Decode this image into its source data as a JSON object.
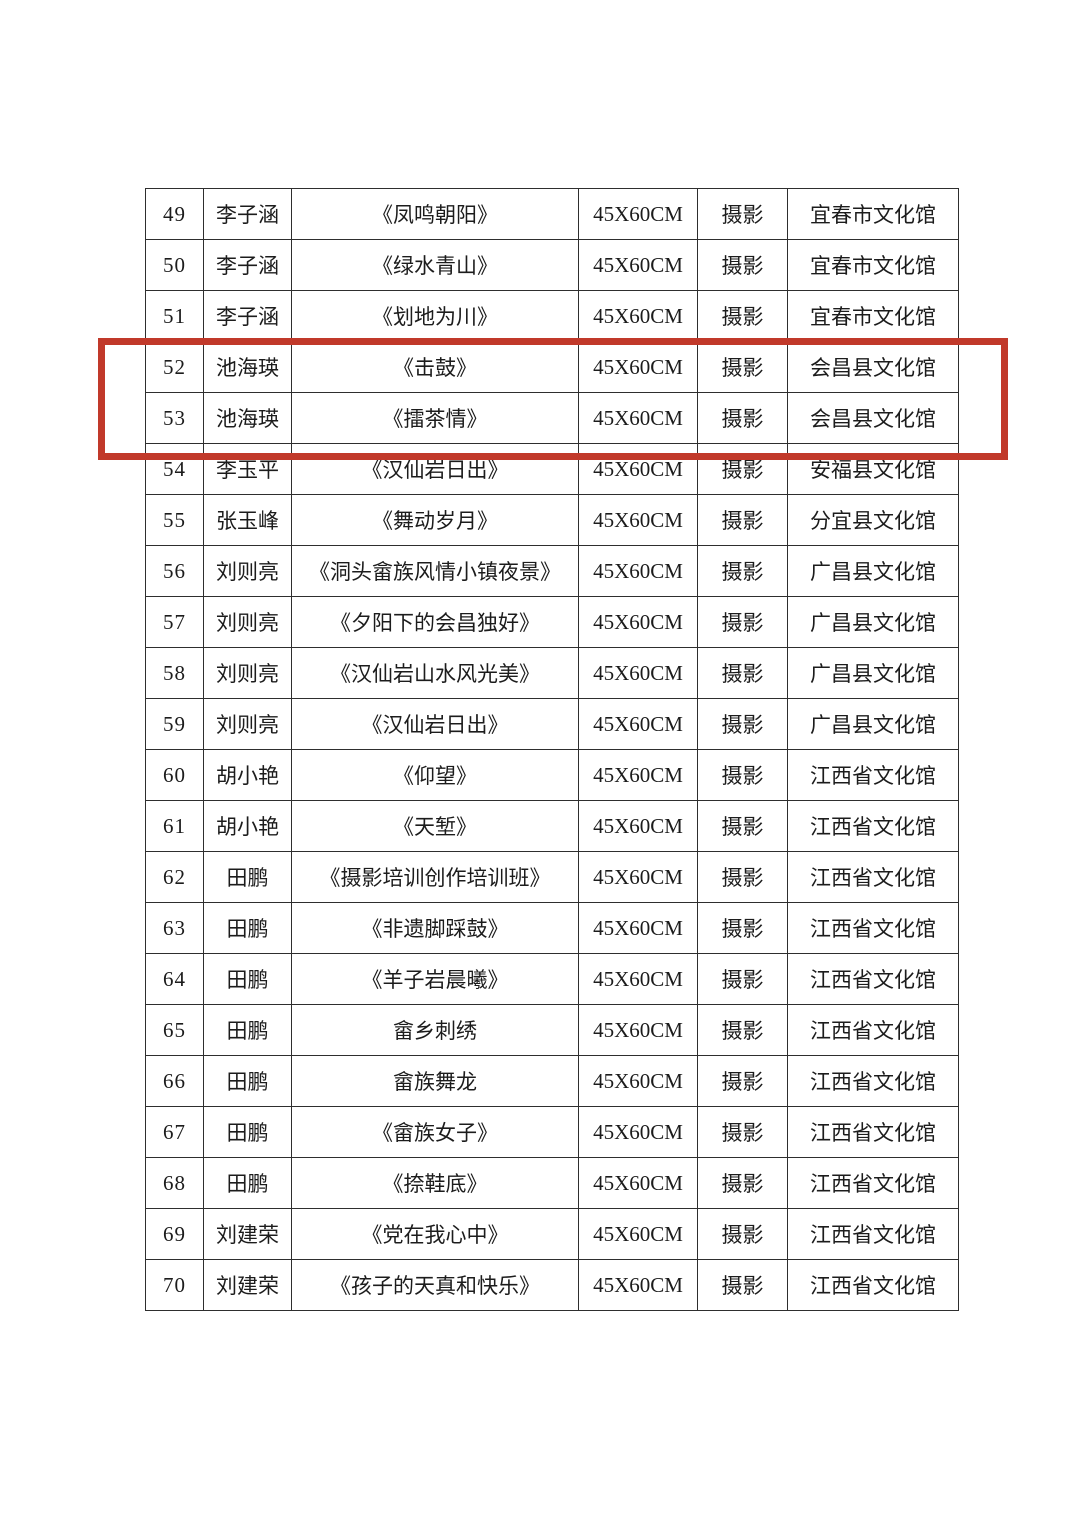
{
  "page": {
    "background": "#ffffff",
    "description_rows_visible": "49-70"
  },
  "colors": {
    "table_border": "#2e2e2e",
    "text": "#1c1c1c",
    "highlight_box": "#c1392a",
    "background": "#ffffff"
  },
  "annotation": {
    "type": "highlight-box",
    "color": "#c1392a",
    "target_rows": [
      "52",
      "53"
    ]
  },
  "table": {
    "rows": [
      {
        "seq": "49",
        "author": "李子涵",
        "title": "《凤鸣朝阳》",
        "size": "45X60CM",
        "category": "摄影",
        "org": "宜春市文化馆",
        "highlighted": false
      },
      {
        "seq": "50",
        "author": "李子涵",
        "title": "《绿水青山》",
        "size": "45X60CM",
        "category": "摄影",
        "org": "宜春市文化馆",
        "highlighted": false
      },
      {
        "seq": "51",
        "author": "李子涵",
        "title": "《划地为川》",
        "size": "45X60CM",
        "category": "摄影",
        "org": "宜春市文化馆",
        "highlighted": false
      },
      {
        "seq": "52",
        "author": "池海瑛",
        "title": "《击鼓》",
        "size": "45X60CM",
        "category": "摄影",
        "org": "会昌县文化馆",
        "highlighted": true
      },
      {
        "seq": "53",
        "author": "池海瑛",
        "title": "《擂茶情》",
        "size": "45X60CM",
        "category": "摄影",
        "org": "会昌县文化馆",
        "highlighted": true
      },
      {
        "seq": "54",
        "author": "李玉平",
        "title": "《汉仙岩日出》",
        "size": "45X60CM",
        "category": "摄影",
        "org": "安福县文化馆",
        "highlighted": false
      },
      {
        "seq": "55",
        "author": "张玉峰",
        "title": "《舞动岁月》",
        "size": "45X60CM",
        "category": "摄影",
        "org": "分宜县文化馆",
        "highlighted": false
      },
      {
        "seq": "56",
        "author": "刘则亮",
        "title": "《洞头畲族风情小镇夜景》",
        "size": "45X60CM",
        "category": "摄影",
        "org": "广昌县文化馆",
        "highlighted": false
      },
      {
        "seq": "57",
        "author": "刘则亮",
        "title": "《夕阳下的会昌独好》",
        "size": "45X60CM",
        "category": "摄影",
        "org": "广昌县文化馆",
        "highlighted": false
      },
      {
        "seq": "58",
        "author": "刘则亮",
        "title": "《汉仙岩山水风光美》",
        "size": "45X60CM",
        "category": "摄影",
        "org": "广昌县文化馆",
        "highlighted": false
      },
      {
        "seq": "59",
        "author": "刘则亮",
        "title": "《汉仙岩日出》",
        "size": "45X60CM",
        "category": "摄影",
        "org": "广昌县文化馆",
        "highlighted": false
      },
      {
        "seq": "60",
        "author": "胡小艳",
        "title": "《仰望》",
        "size": "45X60CM",
        "category": "摄影",
        "org": "江西省文化馆",
        "highlighted": false
      },
      {
        "seq": "61",
        "author": "胡小艳",
        "title": "《天堑》",
        "size": "45X60CM",
        "category": "摄影",
        "org": "江西省文化馆",
        "highlighted": false
      },
      {
        "seq": "62",
        "author": "田鹏",
        "title": "《摄影培训创作培训班》",
        "size": "45X60CM",
        "category": "摄影",
        "org": "江西省文化馆",
        "highlighted": false
      },
      {
        "seq": "63",
        "author": "田鹏",
        "title": "《非遗脚踩鼓》",
        "size": "45X60CM",
        "category": "摄影",
        "org": "江西省文化馆",
        "highlighted": false
      },
      {
        "seq": "64",
        "author": "田鹏",
        "title": "《羊子岩晨曦》",
        "size": "45X60CM",
        "category": "摄影",
        "org": "江西省文化馆",
        "highlighted": false
      },
      {
        "seq": "65",
        "author": "田鹏",
        "title": "畲乡刺绣",
        "size": "45X60CM",
        "category": "摄影",
        "org": "江西省文化馆",
        "highlighted": false
      },
      {
        "seq": "66",
        "author": "田鹏",
        "title": "畲族舞龙",
        "size": "45X60CM",
        "category": "摄影",
        "org": "江西省文化馆",
        "highlighted": false
      },
      {
        "seq": "67",
        "author": "田鹏",
        "title": "《畲族女子》",
        "size": "45X60CM",
        "category": "摄影",
        "org": "江西省文化馆",
        "highlighted": false
      },
      {
        "seq": "68",
        "author": "田鹏",
        "title": "《捺鞋底》",
        "size": "45X60CM",
        "category": "摄影",
        "org": "江西省文化馆",
        "highlighted": false
      },
      {
        "seq": "69",
        "author": "刘建荣",
        "title": "《党在我心中》",
        "size": "45X60CM",
        "category": "摄影",
        "org": "江西省文化馆",
        "highlighted": false
      },
      {
        "seq": "70",
        "author": "刘建荣",
        "title": "《孩子的天真和快乐》",
        "size": "45X60CM",
        "category": "摄影",
        "org": "江西省文化馆",
        "highlighted": false
      }
    ]
  }
}
